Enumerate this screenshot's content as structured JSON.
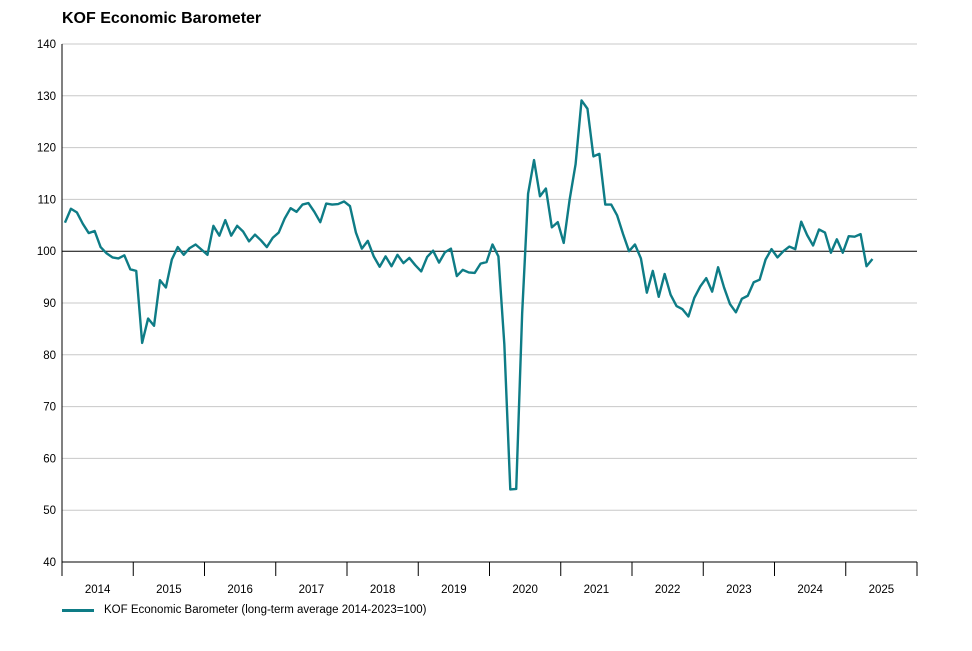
{
  "chart_data": {
    "type": "line",
    "title": "KOF Economic Barometer",
    "xlabel": "",
    "ylabel": "",
    "ylim": [
      40,
      140
    ],
    "yticks": [
      40,
      50,
      60,
      70,
      80,
      90,
      100,
      110,
      120,
      130,
      140
    ],
    "reference_line": 100,
    "year_labels": [
      "2014",
      "2015",
      "2016",
      "2017",
      "2018",
      "2019",
      "2020",
      "2021",
      "2022",
      "2023",
      "2024",
      "2025"
    ],
    "grid": true,
    "legend_position": "bottom-left",
    "color": "#0e7c86",
    "series": [
      {
        "name": "KOF Economic Barometer (long-term average 2014-2023=100)",
        "x_start": "2014-01",
        "values": [
          105.5,
          108.2,
          107.5,
          105.3,
          103.5,
          103.9,
          100.8,
          99.6,
          98.8,
          98.6,
          99.2,
          96.5,
          96.2,
          82.3,
          87.0,
          85.6,
          94.4,
          93.0,
          98.4,
          100.8,
          99.3,
          100.6,
          101.3,
          100.3,
          99.3,
          104.9,
          103.0,
          106.0,
          103.0,
          104.9,
          103.8,
          101.9,
          103.2,
          102.1,
          100.8,
          102.6,
          103.6,
          106.3,
          108.3,
          107.6,
          109.0,
          109.3,
          107.6,
          105.6,
          109.2,
          109.0,
          109.1,
          109.6,
          108.7,
          103.6,
          100.5,
          102.0,
          99.0,
          97.0,
          99.0,
          97.1,
          99.3,
          97.7,
          98.7,
          97.3,
          96.1,
          98.9,
          100.1,
          97.8,
          99.8,
          100.5,
          95.2,
          96.4,
          95.9,
          95.8,
          97.6,
          97.9,
          101.3,
          99.0,
          82.0,
          54.0,
          54.1,
          88.0,
          111.1,
          117.6,
          110.6,
          112.1,
          104.6,
          105.6,
          101.6,
          110.0,
          116.8,
          129.1,
          127.5,
          118.3,
          118.8,
          109.0,
          109.0,
          106.9,
          103.3,
          100.0,
          101.3,
          98.6,
          92.0,
          96.2,
          91.2,
          95.6,
          91.6,
          89.4,
          88.8,
          87.4,
          91.0,
          93.2,
          94.8,
          92.2,
          96.9,
          93.0,
          89.8,
          88.2,
          90.8,
          91.4,
          94.0,
          94.5,
          98.4,
          100.4,
          98.8,
          100.0,
          100.9,
          100.4,
          105.7,
          103.1,
          101.1,
          104.2,
          103.6,
          99.7,
          102.3,
          99.7,
          102.9,
          102.8,
          103.3,
          97.1,
          98.5
        ]
      }
    ]
  }
}
